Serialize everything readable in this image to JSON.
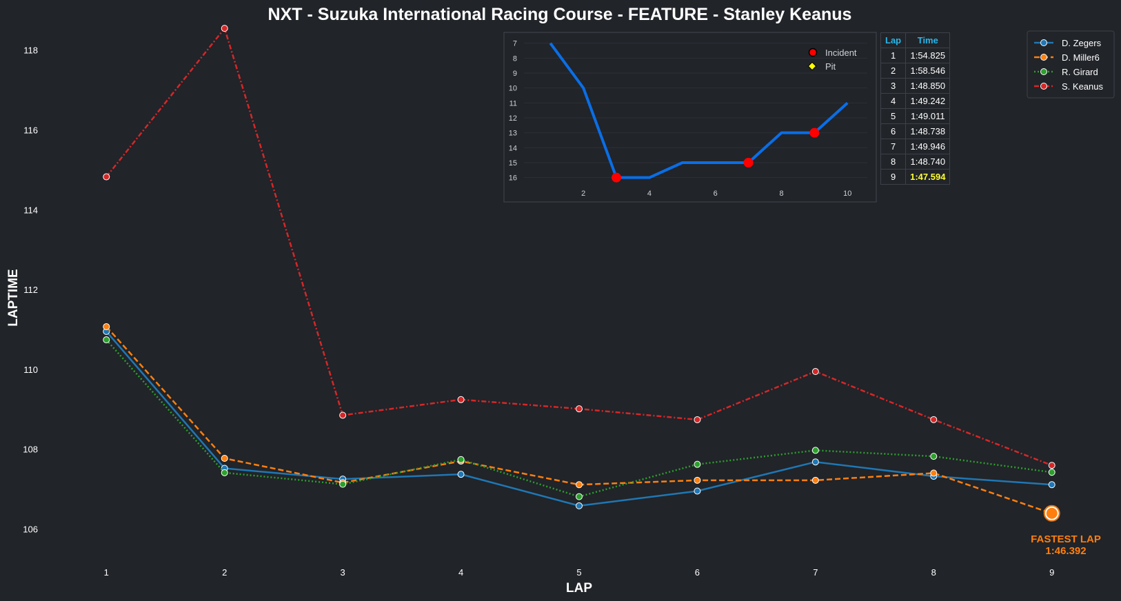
{
  "chart_data": [
    {
      "type": "line",
      "title": "NXT - Suzuka International Racing Course - FEATURE - Stanley Keanus",
      "xlabel": "LAP",
      "ylabel": "LAPTIME",
      "x": [
        1,
        2,
        3,
        4,
        5,
        6,
        7,
        8,
        9
      ],
      "xlim": [
        0.45,
        9.55
      ],
      "ylim": [
        105.3,
        118.6
      ],
      "yticks": [
        106,
        108,
        110,
        112,
        114,
        116,
        118
      ],
      "grid": false,
      "legend_position": "top-right",
      "series": [
        {
          "name": "D. Zegers",
          "color": "#1f77b4",
          "style": "solid",
          "values": [
            110.95,
            107.52,
            107.25,
            107.37,
            106.58,
            106.95,
            107.68,
            107.32,
            107.11
          ]
        },
        {
          "name": "D. Miller6",
          "color": "#ff7f0e",
          "style": "dashed",
          "values": [
            111.07,
            107.77,
            107.16,
            107.7,
            107.11,
            107.22,
            107.22,
            107.4,
            106.39
          ]
        },
        {
          "name": "R. Girard",
          "color": "#2ca02c",
          "style": "dotted",
          "values": [
            110.74,
            107.41,
            107.12,
            107.74,
            106.81,
            107.62,
            107.97,
            107.82,
            107.42
          ]
        },
        {
          "name": "S. Keanus",
          "color": "#d62728",
          "style": "dashdot",
          "values": [
            114.825,
            118.546,
            108.85,
            109.242,
            109.011,
            108.738,
            109.946,
            108.74,
            107.594
          ]
        }
      ],
      "annotation": {
        "label": "FASTEST LAP",
        "value": "1:46.392",
        "x": 9,
        "y": 106.392,
        "color": "#ff7f0e"
      }
    },
    {
      "type": "line",
      "title": "",
      "x": [
        1,
        2,
        3,
        4,
        5,
        6,
        7,
        8,
        9,
        10
      ],
      "y": [
        7,
        10,
        16,
        16,
        15,
        15,
        15,
        13,
        13,
        11
      ],
      "xlim": [
        0.2,
        10.6
      ],
      "ylim": [
        16.8,
        6.6
      ],
      "xticks": [
        2,
        4,
        6,
        8,
        10
      ],
      "yticks": [
        7,
        8,
        9,
        10,
        11,
        12,
        13,
        14,
        15,
        16
      ],
      "y_inverted": true,
      "grid": true,
      "color": "#0a6ee6",
      "markers": {
        "incident": {
          "label": "Incident",
          "color": "#ff0000",
          "points": [
            {
              "x": 3,
              "y": 16
            },
            {
              "x": 7,
              "y": 15
            },
            {
              "x": 9,
              "y": 13
            }
          ]
        },
        "pit": {
          "label": "Pit",
          "color": "#ffff00",
          "points": []
        }
      },
      "legend_position": "top-right"
    },
    {
      "type": "table",
      "columns": [
        "Lap",
        "Time"
      ],
      "rows": [
        [
          "1",
          "1:54.825"
        ],
        [
          "2",
          "1:58.546"
        ],
        [
          "3",
          "1:48.850"
        ],
        [
          "4",
          "1:49.242"
        ],
        [
          "5",
          "1:49.011"
        ],
        [
          "6",
          "1:48.738"
        ],
        [
          "7",
          "1:49.946"
        ],
        [
          "8",
          "1:48.740"
        ],
        [
          "9",
          "1:47.594"
        ]
      ],
      "highlight_row": 8,
      "highlight_color": "#ffff33"
    }
  ]
}
